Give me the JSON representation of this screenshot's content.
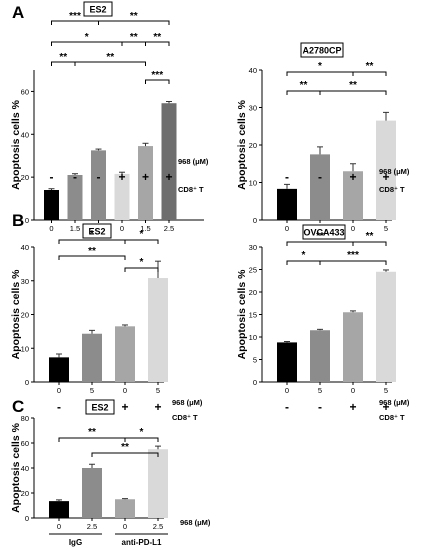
{
  "chart_data": [
    {
      "type": "bar",
      "panel_letter": "A",
      "title": "ES2",
      "ylabel": "Apoptosis cells %",
      "ylim": [
        0,
        70
      ],
      "yticks": [
        0,
        20,
        40,
        60
      ],
      "categories": [
        "0",
        "1.5",
        "2.5",
        "0",
        "1.5",
        "2.5"
      ],
      "values": [
        14,
        21,
        32.5,
        21.5,
        34.5,
        54.5
      ],
      "errors": [
        0.6,
        0.6,
        0.6,
        0.8,
        1.3,
        0.8
      ],
      "colors": [
        "#000000",
        "#8c8c8c",
        "#8c8c8c",
        "#d9d9d9",
        "#a6a6a6",
        "#6e6e6e"
      ],
      "conc_label": "968 (μM)",
      "signs": [
        "-",
        "-",
        "-",
        "+",
        "+",
        "+"
      ],
      "treatment_label": "CD8⁺ T",
      "significance": [
        {
          "from": 0,
          "to": 2,
          "label": "***"
        },
        {
          "from": 2,
          "to": 5,
          "label": "**"
        },
        {
          "from": 0,
          "to": 3,
          "label": "*"
        },
        {
          "from": 3,
          "to": 4,
          "label": "**"
        },
        {
          "from": 4,
          "to": 5,
          "label": "**"
        },
        {
          "from": 0,
          "to": 1,
          "label": "**"
        },
        {
          "from": 1,
          "to": 4,
          "label": "**"
        },
        {
          "from": 4,
          "to": 5,
          "label": "***"
        }
      ]
    },
    {
      "type": "bar",
      "panel_letter": "",
      "title": "A2780CP",
      "ylabel": "Apoptosis cells %",
      "ylim": [
        0,
        40
      ],
      "yticks": [
        0,
        10,
        20,
        30,
        40
      ],
      "categories": [
        "0",
        "5",
        "0",
        "5"
      ],
      "values": [
        8.3,
        17.5,
        13,
        26.5
      ],
      "errors": [
        1.2,
        2,
        2,
        2.2
      ],
      "colors": [
        "#000000",
        "#8c8c8c",
        "#a6a6a6",
        "#d9d9d9"
      ],
      "conc_label": "968 (μM)",
      "signs": [
        "-",
        "-",
        "+",
        "+"
      ],
      "treatment_label": "CD8⁺ T",
      "significance": [
        {
          "from": 0,
          "to": 2,
          "label": "*"
        },
        {
          "from": 2,
          "to": 3,
          "label": "**"
        },
        {
          "from": 0,
          "to": 1,
          "label": "**"
        },
        {
          "from": 1,
          "to": 3,
          "label": "**"
        }
      ]
    },
    {
      "type": "bar",
      "panel_letter": "B",
      "title": "ES2",
      "ylabel": "Apoptosis cells %",
      "ylim": [
        0,
        40
      ],
      "yticks": [
        0,
        10,
        20,
        30,
        40
      ],
      "categories": [
        "0",
        "5",
        "0",
        "5"
      ],
      "values": [
        7.3,
        14.3,
        16.5,
        30.8
      ],
      "errors": [
        1,
        1,
        0.4,
        5
      ],
      "colors": [
        "#000000",
        "#8c8c8c",
        "#a6a6a6",
        "#d9d9d9"
      ],
      "conc_label": "968 (μM)",
      "signs": [
        "-",
        "-",
        "+",
        "+"
      ],
      "treatment_label": "CD8⁺ T",
      "significance": [
        {
          "from": 0,
          "to": 1,
          "label": "*"
        },
        {
          "from": 1,
          "to": 3,
          "label": "*"
        },
        {
          "from": 0,
          "to": 1,
          "label": "**"
        },
        {
          "from": 1,
          "to": 3,
          "label": "*"
        }
      ]
    },
    {
      "type": "bar",
      "panel_letter": "",
      "title": "OVCA433",
      "ylabel": "Apoptosis cells %",
      "ylim": [
        0,
        30
      ],
      "yticks": [
        0,
        5,
        10,
        15,
        20,
        25,
        30
      ],
      "categories": [
        "0",
        "5",
        "0",
        "5"
      ],
      "values": [
        8.8,
        11.5,
        15.5,
        24.5
      ],
      "errors": [
        0.2,
        0.2,
        0.3,
        0.4
      ],
      "colors": [
        "#000000",
        "#8c8c8c",
        "#a6a6a6",
        "#d9d9d9"
      ],
      "conc_label": "968 (μM)",
      "signs": [
        "-",
        "-",
        "+",
        "+"
      ],
      "treatment_label": "CD8⁺ T",
      "significance": [
        {
          "from": 0,
          "to": 2,
          "label": "**"
        },
        {
          "from": 2,
          "to": 3,
          "label": "**"
        },
        {
          "from": 0,
          "to": 1,
          "label": "*"
        },
        {
          "from": 1,
          "to": 3,
          "label": "***"
        }
      ]
    },
    {
      "type": "bar",
      "panel_letter": "C",
      "title": "ES2",
      "ylabel": "Apoptosis cells %",
      "ylim": [
        0,
        80
      ],
      "yticks": [
        0,
        20,
        40,
        60,
        80
      ],
      "categories": [
        "0",
        "2.5",
        "0",
        "2.5"
      ],
      "values": [
        13.5,
        40,
        15,
        55
      ],
      "errors": [
        1,
        3,
        0.5,
        2.5
      ],
      "colors": [
        "#000000",
        "#8c8c8c",
        "#a6a6a6",
        "#d9d9d9"
      ],
      "conc_label": "968 (μM)",
      "groups": [
        "IgG",
        "anti-PD-L1"
      ],
      "significance": [
        {
          "from": 0,
          "to": 2,
          "label": "**"
        },
        {
          "from": 2,
          "to": 3,
          "label": "*"
        },
        {
          "from": 1,
          "to": 3,
          "label": "**"
        }
      ]
    }
  ]
}
